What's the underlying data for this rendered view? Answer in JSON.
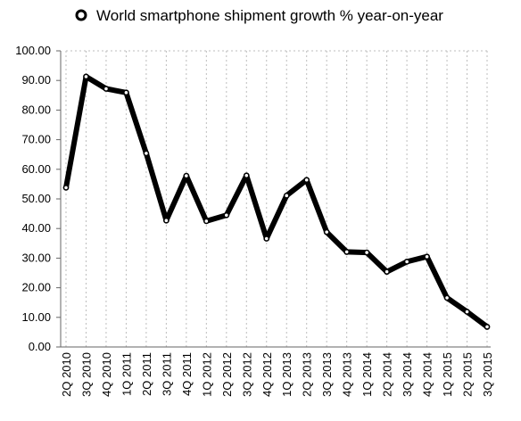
{
  "chart_data": {
    "type": "line",
    "title": "",
    "xlabel": "",
    "ylabel": "",
    "categories": [
      "2Q 2010",
      "3Q 2010",
      "4Q 2010",
      "1Q 2011",
      "2Q 2011",
      "3Q 2011",
      "4Q 2011",
      "1Q 2012",
      "2Q 2012",
      "3Q 2012",
      "4Q 2012",
      "1Q 2013",
      "2Q 2013",
      "3Q 2013",
      "4Q 2013",
      "1Q 2014",
      "2Q 2014",
      "3Q 2014",
      "4Q 2014",
      "1Q 2015",
      "2Q 2015",
      "3Q 2015"
    ],
    "series": [
      {
        "name": "World smartphone shipment growth % year-on-year",
        "values": [
          53.8,
          91.3,
          87.2,
          85.9,
          65.4,
          42.7,
          57.8,
          42.5,
          44.5,
          57.9,
          36.6,
          51.1,
          56.4,
          38.8,
          32.1,
          31.9,
          25.4,
          28.8,
          30.5,
          16.6,
          11.9,
          6.8
        ]
      }
    ],
    "ylim": [
      0,
      100
    ],
    "yticks": [
      "100.00",
      "90.00",
      "80.00",
      "70.00",
      "60.00",
      "50.00",
      "40.00",
      "30.00",
      "20.00",
      "10.00",
      "0.00"
    ],
    "grid": "vertical dotted",
    "legend": "top",
    "line_color": "#000000",
    "marker_fill": "#ffffff"
  }
}
